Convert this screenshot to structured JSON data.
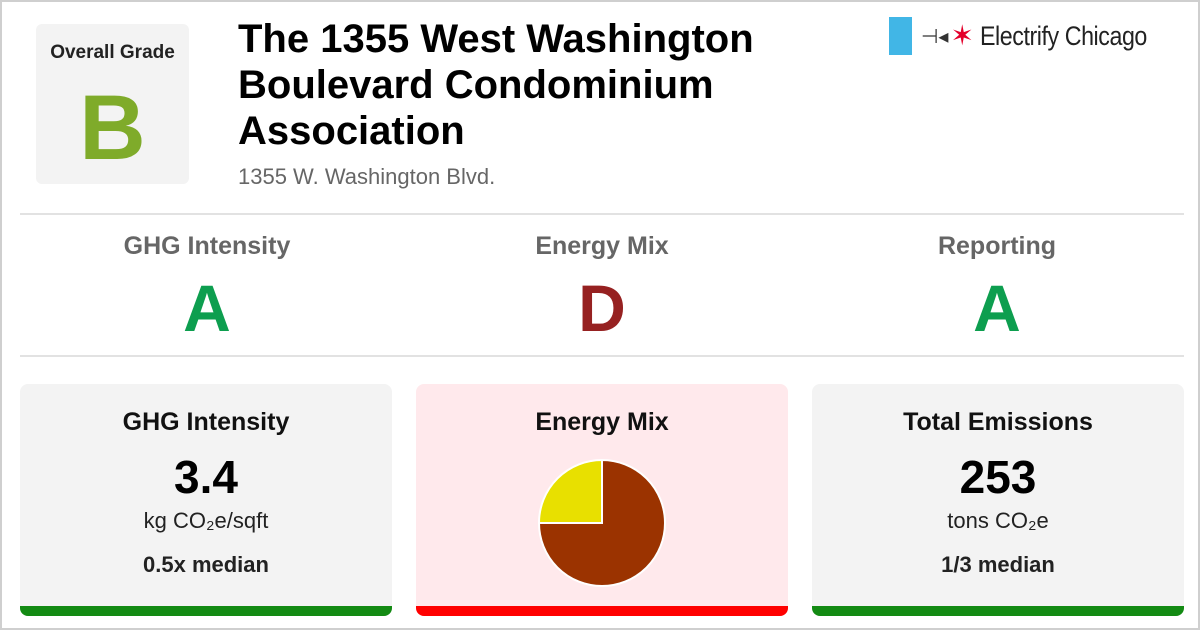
{
  "overall": {
    "label": "Overall Grade",
    "grade": "B",
    "grade_color": "#7fab2a"
  },
  "building": {
    "name": "The 1355 West Washington Boulevard Condominium Association",
    "address": "1355 W. Washington Blvd."
  },
  "logo": {
    "text": "Electrify Chicago",
    "flag_color": "#41b6e6",
    "star_color": "#e4002b"
  },
  "grades": [
    {
      "label": "GHG Intensity",
      "grade": "A",
      "color": "#0d9e4f"
    },
    {
      "label": "Energy Mix",
      "grade": "D",
      "color": "#962121"
    },
    {
      "label": "Reporting",
      "grade": "A",
      "color": "#0d9e4f"
    }
  ],
  "cards": {
    "ghg": {
      "title": "GHG Intensity",
      "value": "3.4",
      "unit": "kg CO₂e/sqft",
      "median": "0.5x median",
      "bar_color": "#138a13",
      "bg": "#f3f3f3"
    },
    "mix": {
      "title": "Energy Mix",
      "bar_color": "#ff0000",
      "bg": "#ffe9ec"
    },
    "emissions": {
      "title": "Total Emissions",
      "value": "253",
      "unit": "tons CO₂e",
      "median": "1/3 median",
      "bar_color": "#138a13",
      "bg": "#f3f3f3"
    }
  },
  "chart_data": {
    "type": "pie",
    "slices": [
      {
        "value": 75,
        "color": "#9b3300"
      },
      {
        "value": 25,
        "color": "#e8e000"
      }
    ]
  }
}
